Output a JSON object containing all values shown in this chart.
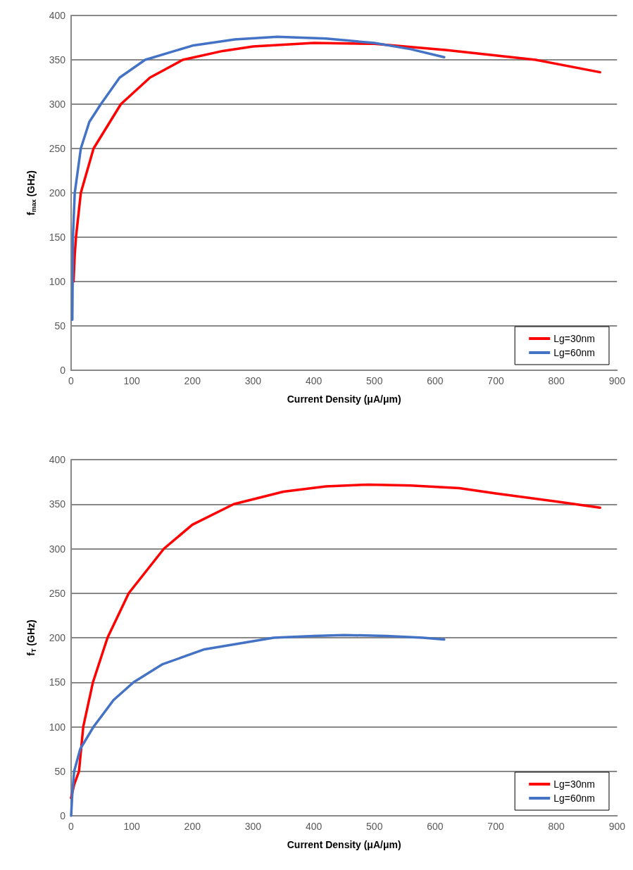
{
  "chart_data": [
    {
      "type": "line",
      "xlabel": "Current Density (μA/μm)",
      "ylabel": "f$_{max}$ (GHz)",
      "xlim": [
        0,
        900
      ],
      "xticks": [
        0,
        100,
        200,
        300,
        400,
        500,
        600,
        700,
        800,
        900
      ],
      "ylim": [
        0,
        400
      ],
      "yticks": [
        0,
        50,
        100,
        150,
        200,
        250,
        300,
        350,
        400
      ],
      "grid": "y",
      "legend": "bottom right",
      "marker": "none",
      "line_style": "solid",
      "series": [
        {
          "name": "Lg=30nm",
          "color": "#ff0000",
          "x": [
            4,
            6,
            8,
            16,
            37,
            82,
            130,
            184,
            250,
            300,
            400,
            500,
            620,
            766,
            872
          ],
          "values": [
            100,
            130,
            150,
            200,
            250,
            300,
            330,
            350,
            360,
            365,
            369,
            368,
            361,
            350,
            336
          ]
        },
        {
          "name": "Lg=60nm",
          "color": "#4472c4",
          "x": [
            2,
            3,
            6,
            16,
            30,
            49,
            80,
            122,
            200,
            270,
            340,
            420,
            500,
            560,
            615
          ],
          "values": [
            57,
            150,
            200,
            250,
            280,
            300,
            330,
            350,
            366,
            373,
            376,
            374,
            369,
            362,
            353
          ]
        }
      ]
    },
    {
      "type": "line",
      "xlabel": "Current Density (μA/μm)",
      "ylabel": "f$_{T}$ (GHz)",
      "xlim": [
        0,
        900
      ],
      "xticks": [
        0,
        100,
        200,
        300,
        400,
        500,
        600,
        700,
        800,
        900
      ],
      "ylim": [
        0,
        400
      ],
      "yticks": [
        0,
        50,
        100,
        150,
        200,
        250,
        300,
        350,
        400
      ],
      "grid": "y",
      "legend": "bottom right",
      "marker": "none",
      "line_style": "solid",
      "series": [
        {
          "name": "Lg=30nm",
          "color": "#ff0000",
          "x": [
            0,
            5,
            13,
            20,
            36,
            60,
            95,
            153,
            200,
            268,
            350,
            420,
            490,
            560,
            640,
            700,
            800,
            872
          ],
          "values": [
            20,
            35,
            50,
            100,
            150,
            200,
            250,
            300,
            327,
            350,
            364,
            370,
            372,
            371,
            368,
            362,
            353,
            346
          ]
        },
        {
          "name": "Lg=60nm",
          "color": "#4472c4",
          "x": [
            0,
            2,
            5,
            15,
            37,
            70,
            103,
            150,
            220,
            334,
            400,
            450,
            520,
            580,
            615
          ],
          "values": [
            0,
            25,
            50,
            75,
            100,
            130,
            150,
            170,
            187,
            200,
            202,
            203,
            202,
            200,
            198
          ]
        }
      ]
    }
  ]
}
